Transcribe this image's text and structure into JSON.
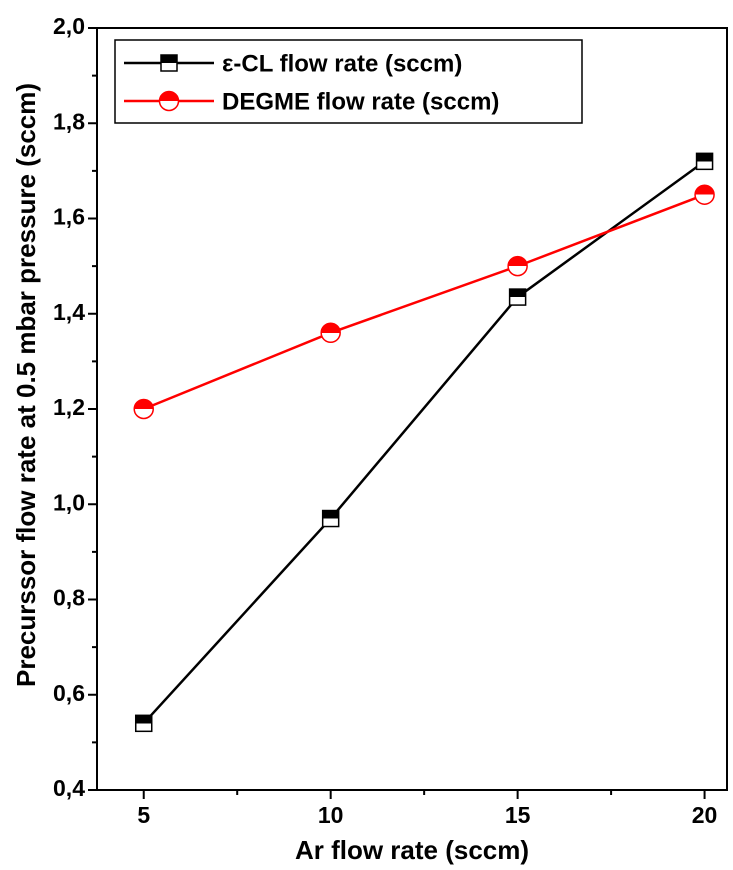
{
  "chart_data": {
    "type": "line",
    "x_label": "Ar flow rate (sccm)",
    "y_label": "Precurssor flow rate at 0.5 mbar pressure (sccm)",
    "x": [
      5,
      10,
      15,
      20
    ],
    "series": [
      {
        "name": "ε-CL flow rate (sccm)",
        "color": "#000000",
        "marker": "square",
        "values": [
          0.54,
          0.97,
          1.435,
          1.72
        ]
      },
      {
        "name": "DEGME flow rate (sccm)",
        "color": "#ff0000",
        "marker": "circle",
        "values": [
          1.2,
          1.36,
          1.5,
          1.65
        ]
      }
    ],
    "xlim": [
      3.75,
      20.6
    ],
    "ylim": [
      0.4,
      2.0
    ],
    "xticks": [
      5,
      10,
      15,
      20
    ],
    "xminorticks": [
      7.5,
      12.5,
      17.5
    ],
    "yticks": [
      {
        "value": 0.4,
        "label": "0,4"
      },
      {
        "value": 0.6,
        "label": "0,6"
      },
      {
        "value": 0.8,
        "label": "0,8"
      },
      {
        "value": 1.0,
        "label": "1,0"
      },
      {
        "value": 1.2,
        "label": "1,2"
      },
      {
        "value": 1.4,
        "label": "1,4"
      },
      {
        "value": 1.6,
        "label": "1,6"
      },
      {
        "value": 1.8,
        "label": "1,8"
      },
      {
        "value": 2.0,
        "label": "2,0"
      }
    ],
    "yminorticks": [
      0.5,
      0.7,
      0.9,
      1.1,
      1.3,
      1.5,
      1.7,
      1.9
    ],
    "legend": "upper left",
    "grid": false
  }
}
